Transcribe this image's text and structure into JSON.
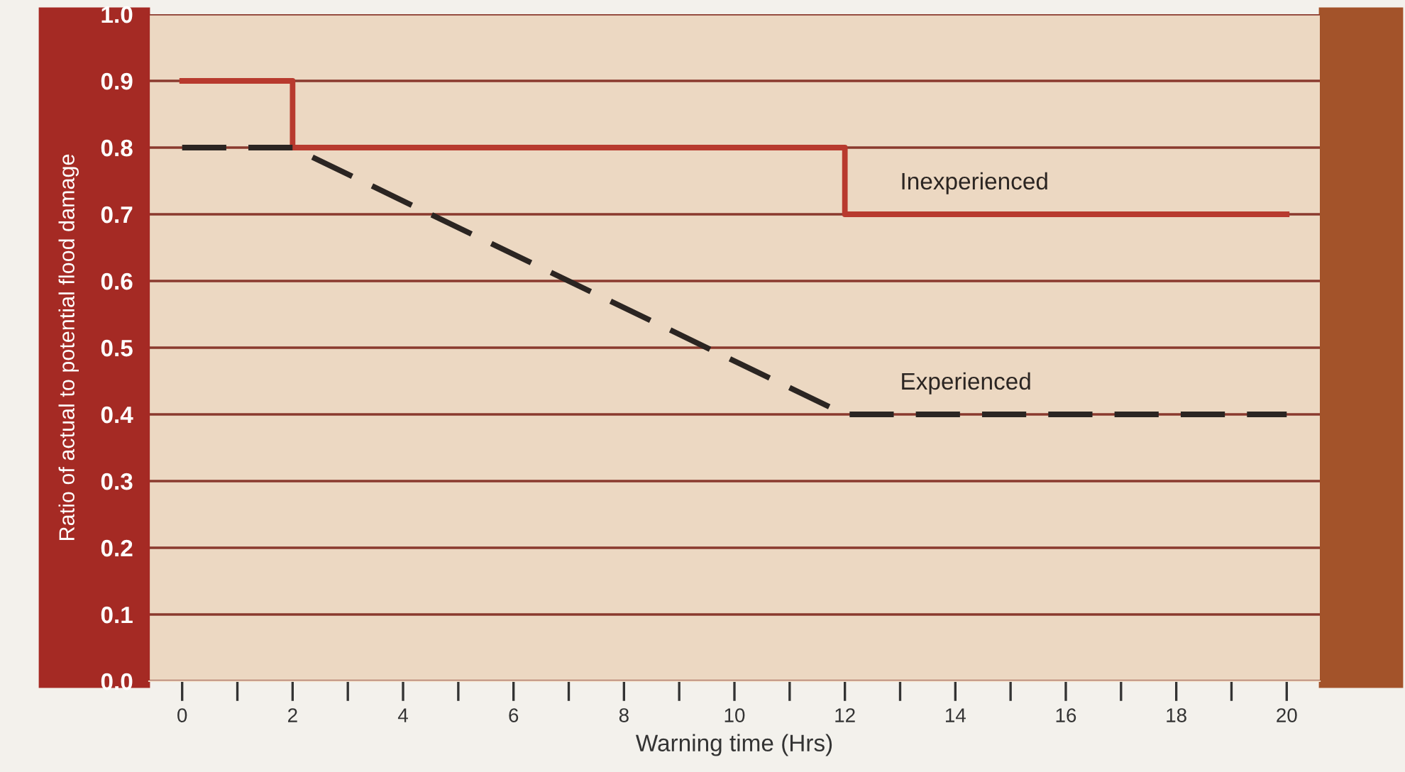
{
  "chart_data": {
    "type": "line",
    "xlabel": "Warning time (Hrs)",
    "ylabel": "Ratio of actual to potential flood damage",
    "xlim": [
      -0.6,
      20.6
    ],
    "ylim": [
      0,
      1.0
    ],
    "xticks": [
      0,
      {
        "value": 1,
        "label": null
      },
      2,
      {
        "value": 3,
        "label": null
      },
      4,
      {
        "value": 5,
        "label": null
      },
      6,
      {
        "value": 7,
        "label": null
      },
      8,
      {
        "value": 9,
        "label": null
      },
      10,
      {
        "value": 11,
        "label": null
      },
      12,
      {
        "value": 13,
        "label": null
      },
      14,
      {
        "value": 15,
        "label": null
      },
      16,
      {
        "value": 17,
        "label": null
      },
      18,
      {
        "value": 19,
        "label": null
      },
      20
    ],
    "yticks": [
      {
        "value": 0,
        "label": "0.0"
      },
      0.1,
      0.2,
      0.3,
      0.4,
      0.5,
      0.6,
      0.7,
      0.8,
      0.9,
      {
        "value": 1,
        "label": "1.0"
      }
    ],
    "grid": "y",
    "legend": false,
    "series": [
      {
        "name": "Inexperienced",
        "type": "step",
        "color": "#b83a2e",
        "line_style": "solid",
        "x": [
          0,
          2,
          12,
          20
        ],
        "values": [
          0.9,
          0.8,
          0.7,
          0.7
        ]
      },
      {
        "name": "Experienced",
        "color": "#2b2522",
        "line_style": "dashed",
        "x": [
          0,
          2,
          12,
          20
        ],
        "values": [
          0.8,
          0.8,
          0.4,
          0.4
        ]
      }
    ]
  }
}
